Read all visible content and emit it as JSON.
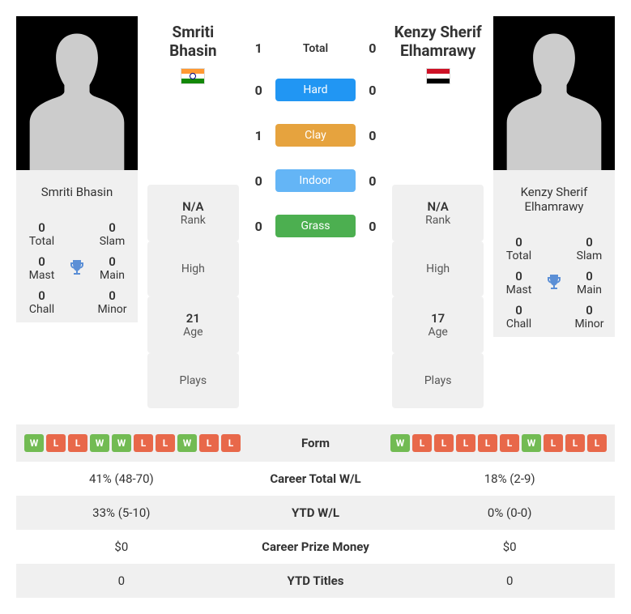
{
  "player1": {
    "name": "Smriti Bhasin",
    "flag": "india",
    "rank": "N/A",
    "high": "",
    "age": "21",
    "plays": "",
    "career": {
      "total": "0",
      "slam": "0",
      "mast": "0",
      "main": "0",
      "chall": "0",
      "minor": "0"
    }
  },
  "player2": {
    "name": "Kenzy Sherif Elhamrawy",
    "flag": "egypt",
    "rank": "N/A",
    "high": "",
    "age": "17",
    "plays": "",
    "career": {
      "total": "0",
      "slam": "0",
      "mast": "0",
      "main": "0",
      "chall": "0",
      "minor": "0"
    }
  },
  "labels": {
    "total": "Total",
    "slam": "Slam",
    "mast": "Mast",
    "main": "Main",
    "chall": "Chall",
    "minor": "Minor",
    "rank": "Rank",
    "high": "High",
    "age": "Age",
    "plays": "Plays"
  },
  "h2h": {
    "total": {
      "p1": "1",
      "label": "Total",
      "p2": "0"
    },
    "hard": {
      "p1": "0",
      "label": "Hard",
      "p2": "0"
    },
    "clay": {
      "p1": "1",
      "label": "Clay",
      "p2": "0"
    },
    "indoor": {
      "p1": "0",
      "label": "Indoor",
      "p2": "0"
    },
    "grass": {
      "p1": "0",
      "label": "Grass",
      "p2": "0"
    }
  },
  "form": {
    "p1": [
      "W",
      "L",
      "L",
      "W",
      "W",
      "L",
      "L",
      "W",
      "L",
      "L"
    ],
    "p2": [
      "W",
      "L",
      "L",
      "L",
      "L",
      "L",
      "W",
      "L",
      "L",
      "L"
    ]
  },
  "stats": {
    "form": {
      "label": "Form"
    },
    "career_wl": {
      "p1": "41% (48-70)",
      "label": "Career Total W/L",
      "p2": "18% (2-9)"
    },
    "ytd_wl": {
      "p1": "33% (5-10)",
      "label": "YTD W/L",
      "p2": "0% (0-0)"
    },
    "prize": {
      "p1": "$0",
      "label": "Career Prize Money",
      "p2": "$0"
    },
    "ytd_titles": {
      "p1": "0",
      "label": "YTD Titles",
      "p2": "0"
    }
  },
  "colors": {
    "hard": "#2196f3",
    "clay": "#e6a33e",
    "indoor": "#64b5f6",
    "grass": "#4caf50",
    "win": "#72bb53",
    "loss": "#e8684a",
    "panel": "#f0f0f0"
  }
}
